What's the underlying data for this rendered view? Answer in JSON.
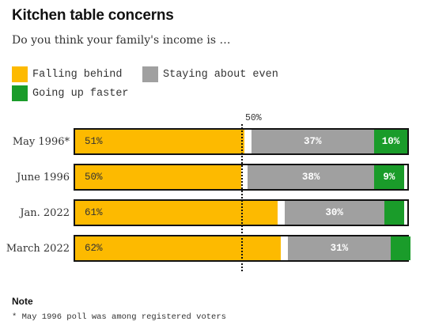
{
  "title": "Kitchen table concerns",
  "subtitle": "Do you think your family's income is …",
  "colors": {
    "falling": "#FDBA00",
    "staying": "#A0A0A0",
    "up": "#1A9C2A",
    "outline": "#121212"
  },
  "legend": [
    {
      "label": "Falling behind",
      "color_key": "falling"
    },
    {
      "label": "Staying about even",
      "color_key": "staying"
    },
    {
      "label": "Going up faster",
      "color_key": "up"
    }
  ],
  "reference_label": "50%",
  "note": {
    "heading": "Note",
    "text": "* May 1996 poll was among registered voters"
  },
  "chart_data": {
    "type": "bar",
    "orientation": "horizontal",
    "stacked": true,
    "title": "Kitchen table concerns",
    "subtitle": "Do you think your family's income is …",
    "categories": [
      "May 1996*",
      "June 1996",
      "Jan. 2022",
      "March 2022"
    ],
    "series": [
      {
        "name": "Falling behind",
        "values": [
          51,
          50,
          61,
          62
        ],
        "labels": [
          "51%",
          "50%",
          "61%",
          "62%"
        ]
      },
      {
        "name": "Staying about even",
        "values": [
          37,
          38,
          30,
          31
        ],
        "labels": [
          "37%",
          "38%",
          "30%",
          "31%"
        ]
      },
      {
        "name": "Going up faster",
        "values": [
          10,
          9,
          6,
          6
        ],
        "labels": [
          "10%",
          "9%",
          "",
          ""
        ]
      }
    ],
    "xlim": [
      0,
      100
    ],
    "reference_line": 50,
    "legend_position": "top-left"
  }
}
